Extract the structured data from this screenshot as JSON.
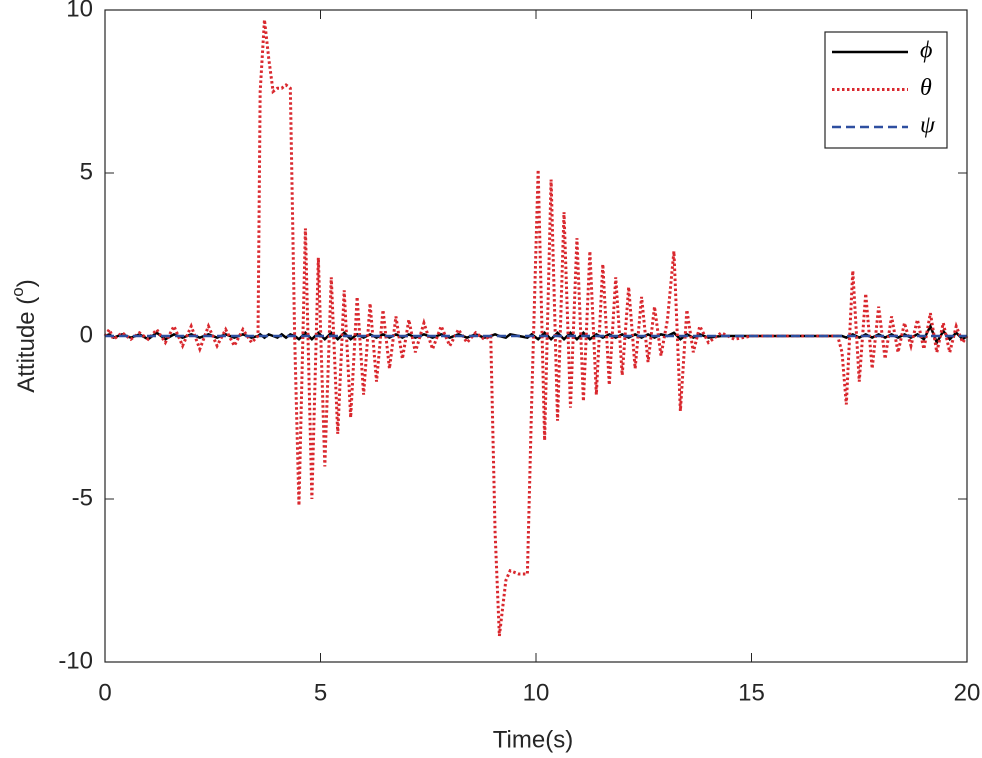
{
  "chart_data": {
    "type": "line",
    "x_label": "Time(s)",
    "y_label": [
      "Attitude (",
      "o",
      ")"
    ],
    "xlim": [
      0,
      20
    ],
    "xticks": [
      0,
      5,
      10,
      15,
      20
    ],
    "ylim": [
      -10,
      10
    ],
    "yticks": [
      -10,
      -5,
      0,
      5,
      10
    ],
    "grid": false,
    "legend": "upper right",
    "x": [
      0,
      0.1,
      0.2,
      0.4,
      0.6,
      0.8,
      1.0,
      1.2,
      1.4,
      1.6,
      1.8,
      2.0,
      2.2,
      2.4,
      2.6,
      2.8,
      3.0,
      3.2,
      3.4,
      3.55,
      3.6,
      3.7,
      3.8,
      3.9,
      4.0,
      4.1,
      4.2,
      4.3,
      4.4,
      4.5,
      4.65,
      4.8,
      4.95,
      5.1,
      5.25,
      5.4,
      5.55,
      5.7,
      5.85,
      6.0,
      6.15,
      6.3,
      6.45,
      6.6,
      6.75,
      6.9,
      7.05,
      7.2,
      7.4,
      7.6,
      7.8,
      8.0,
      8.2,
      8.4,
      8.6,
      8.8,
      8.95,
      9.05,
      9.15,
      9.3,
      9.4,
      9.6,
      9.8,
      9.9,
      10.05,
      10.2,
      10.35,
      10.5,
      10.65,
      10.8,
      10.95,
      11.1,
      11.25,
      11.4,
      11.55,
      11.7,
      11.85,
      12.0,
      12.15,
      12.3,
      12.45,
      12.6,
      12.75,
      12.9,
      13.05,
      13.2,
      13.35,
      13.5,
      13.65,
      13.8,
      14.0,
      14.3,
      14.6,
      15,
      16,
      17,
      17.1,
      17.2,
      17.35,
      17.5,
      17.65,
      17.8,
      17.95,
      18.1,
      18.25,
      18.4,
      18.55,
      18.7,
      18.85,
      19.0,
      19.15,
      19.3,
      19.45,
      19.6,
      19.75,
      19.9,
      20
    ],
    "series": [
      {
        "name": "ϕ",
        "color": "#000000",
        "dash": "solid",
        "values": [
          0,
          0.05,
          -0.05,
          0.05,
          -0.05,
          0.05,
          -0.1,
          0.1,
          -0.1,
          0.05,
          -0.05,
          0.05,
          -0.05,
          0.05,
          -0.05,
          0.05,
          -0.05,
          0.05,
          -0.05,
          0,
          0.05,
          -0.05,
          0.05,
          0,
          -0.05,
          0.05,
          -0.05,
          0.05,
          0,
          -0.1,
          0.1,
          -0.1,
          0.1,
          -0.1,
          0.1,
          -0.1,
          0.1,
          -0.1,
          0.05,
          -0.05,
          0.05,
          -0.05,
          0.05,
          -0.05,
          0.05,
          -0.05,
          0.05,
          -0.05,
          0.05,
          -0.05,
          0.05,
          -0.05,
          0.05,
          -0.05,
          0.05,
          -0.05,
          0,
          0.05,
          0,
          -0.05,
          0.05,
          0,
          -0.05,
          0.05,
          -0.1,
          0.1,
          -0.1,
          0.1,
          -0.1,
          0.1,
          -0.1,
          0.1,
          -0.1,
          0.05,
          -0.05,
          0.05,
          -0.05,
          0.05,
          -0.05,
          0.05,
          -0.05,
          0.05,
          -0.05,
          0.05,
          0,
          0.1,
          -0.1,
          0.05,
          -0.05,
          0.05,
          -0.05,
          0,
          0,
          0,
          0,
          0,
          0,
          -0.05,
          0.05,
          -0.05,
          0.05,
          -0.05,
          0.05,
          -0.05,
          0.05,
          -0.05,
          0.05,
          -0.05,
          0.05,
          -0.1,
          0.3,
          -0.2,
          0.15,
          -0.1,
          0.1,
          -0.1,
          0
        ]
      },
      {
        "name": "θ",
        "color": "#d9282e",
        "dash": "dotted",
        "values": [
          0,
          0.2,
          -0.1,
          0.1,
          -0.1,
          0.1,
          -0.1,
          0.2,
          -0.2,
          0.3,
          -0.3,
          0.3,
          -0.4,
          0.3,
          -0.3,
          0.2,
          -0.3,
          0.2,
          -0.2,
          0,
          7.5,
          9.7,
          8.5,
          7.5,
          7.6,
          7.6,
          7.7,
          7.6,
          0,
          -5.2,
          3.3,
          -5,
          2.4,
          -4,
          1.8,
          -3,
          1.4,
          -2.5,
          1.2,
          -1.8,
          1,
          -1.4,
          0.8,
          -1,
          0.6,
          -0.7,
          0.5,
          -0.5,
          0.4,
          -0.4,
          0.3,
          -0.3,
          0.2,
          -0.2,
          0.1,
          -0.1,
          0,
          -6,
          -9.2,
          -7.5,
          -7.2,
          -7.3,
          -7.3,
          -2,
          5.1,
          -3.2,
          4.8,
          -2.6,
          3.8,
          -2.2,
          3,
          -2,
          2.6,
          -1.8,
          2.2,
          -1.5,
          1.8,
          -1.2,
          1.5,
          -1,
          1.2,
          -0.8,
          0.9,
          -0.6,
          0.5,
          2.6,
          -2.3,
          0.8,
          -0.5,
          0.3,
          -0.2,
          0.1,
          -0.1,
          0,
          0,
          0,
          -0.5,
          -2.1,
          2,
          -1.4,
          1.3,
          -1,
          0.9,
          -0.7,
          0.6,
          -0.5,
          0.4,
          -0.3,
          0.5,
          -0.4,
          0.7,
          -0.5,
          0.4,
          -0.5,
          0.3,
          -0.2,
          0
        ]
      },
      {
        "name": "ψ",
        "color": "#2e4fa0",
        "dash": "dashed",
        "values": [
          0,
          0,
          0,
          0,
          0,
          0,
          0,
          0,
          0,
          0,
          0,
          0,
          0,
          0,
          0,
          0,
          0,
          0,
          0,
          0,
          0,
          0,
          0,
          0,
          0,
          0,
          0,
          0,
          0,
          0,
          0,
          0,
          0,
          0,
          0,
          0,
          0,
          0,
          0,
          0,
          0,
          0,
          0,
          0,
          0,
          0,
          0,
          0,
          0,
          0,
          0,
          0,
          0,
          0,
          0,
          0,
          0,
          0,
          0,
          0,
          0,
          0,
          0,
          0,
          0,
          0,
          0,
          0,
          0,
          0,
          0,
          0,
          0,
          0,
          0,
          0,
          0,
          0,
          0,
          0,
          0,
          0,
          0,
          0,
          0,
          0,
          0,
          0,
          0,
          0,
          0,
          0,
          0,
          0,
          0,
          0,
          0,
          0,
          0,
          0,
          0,
          0,
          0,
          0,
          0,
          0,
          0,
          0,
          0,
          0,
          0,
          0,
          0,
          0,
          0,
          0,
          0
        ]
      }
    ]
  }
}
